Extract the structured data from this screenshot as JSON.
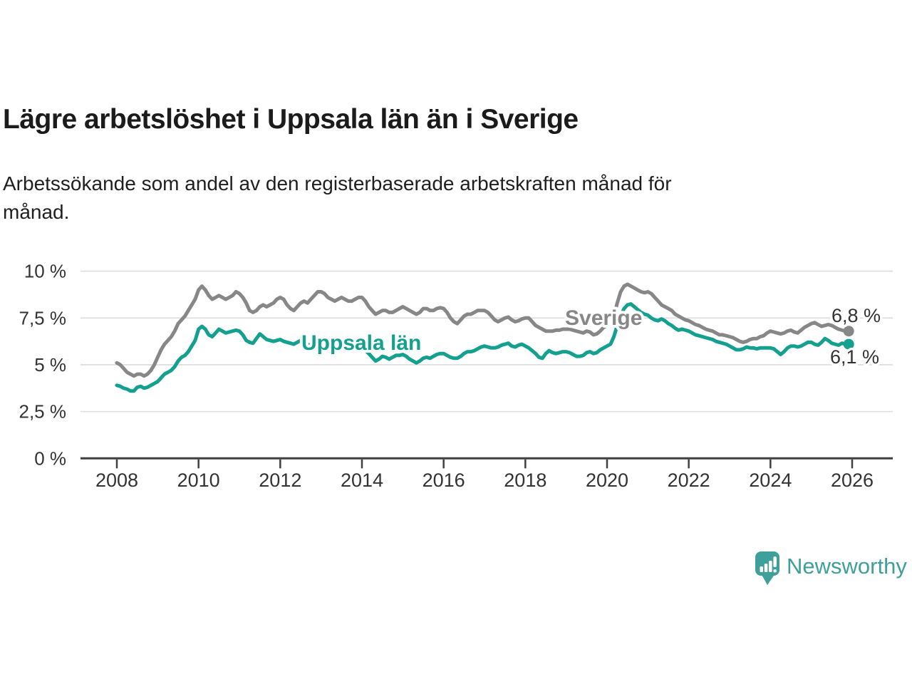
{
  "page": {
    "title": "Lägre arbetslöshet i Uppsala län än i Sverige",
    "subtitle_line1": "Arbetssökande som andel av den registerbaserade arbetskraften månad för",
    "subtitle_line2": "månad."
  },
  "chart_data": {
    "type": "line",
    "unit": "%",
    "frequency": "monthly",
    "x_start_year": 2008,
    "x_end_year": 2025,
    "x_tick_years": [
      2008,
      2010,
      2012,
      2014,
      2016,
      2018,
      2020,
      2022,
      2024,
      2026
    ],
    "x_tick_labels": [
      "2008",
      "2010",
      "2012",
      "2014",
      "2016",
      "2018",
      "2020",
      "2022",
      "2024",
      "2026"
    ],
    "y_ticks": [
      0,
      2.5,
      5,
      7.5,
      10
    ],
    "y_tick_labels": [
      "0 %",
      "2,5 %",
      "5 %",
      "7,5 %",
      "10 %"
    ],
    "ylim": [
      0,
      10
    ],
    "grid": "horizontal",
    "legend_position": "inline-labels",
    "series": [
      {
        "name": "Sverige",
        "color": "#878787",
        "end_label": "6,8 %",
        "end_value": 6.8,
        "values": [
          5.1,
          5.0,
          4.8,
          4.6,
          4.5,
          4.4,
          4.5,
          4.5,
          4.4,
          4.5,
          4.7,
          5.0,
          5.4,
          5.8,
          6.1,
          6.3,
          6.5,
          6.8,
          7.2,
          7.4,
          7.6,
          7.9,
          8.2,
          8.5,
          9.0,
          9.2,
          9.0,
          8.7,
          8.5,
          8.6,
          8.7,
          8.6,
          8.5,
          8.6,
          8.7,
          8.9,
          8.8,
          8.6,
          8.3,
          7.9,
          7.8,
          7.9,
          8.1,
          8.2,
          8.1,
          8.2,
          8.3,
          8.5,
          8.6,
          8.5,
          8.2,
          8.0,
          7.9,
          8.1,
          8.3,
          8.4,
          8.3,
          8.5,
          8.7,
          8.9,
          8.9,
          8.8,
          8.6,
          8.5,
          8.4,
          8.5,
          8.6,
          8.5,
          8.4,
          8.4,
          8.5,
          8.6,
          8.6,
          8.4,
          8.1,
          7.9,
          7.7,
          7.8,
          7.9,
          7.9,
          7.8,
          7.8,
          7.9,
          8.0,
          8.1,
          8.0,
          7.9,
          7.8,
          7.7,
          7.8,
          8.0,
          8.0,
          7.9,
          7.9,
          8.0,
          8.05,
          8.0,
          7.8,
          7.5,
          7.3,
          7.2,
          7.4,
          7.6,
          7.7,
          7.7,
          7.8,
          7.9,
          7.9,
          7.9,
          7.8,
          7.6,
          7.4,
          7.3,
          7.4,
          7.5,
          7.55,
          7.4,
          7.3,
          7.35,
          7.45,
          7.5,
          7.5,
          7.3,
          7.1,
          7.0,
          6.9,
          6.8,
          6.8,
          6.8,
          6.85,
          6.85,
          6.9,
          6.9,
          6.9,
          6.85,
          6.8,
          6.75,
          6.7,
          6.8,
          6.75,
          6.6,
          6.65,
          6.8,
          7.0,
          7.1,
          7.2,
          7.6,
          8.3,
          8.9,
          9.2,
          9.3,
          9.2,
          9.1,
          9.0,
          8.9,
          8.85,
          8.9,
          8.8,
          8.6,
          8.4,
          8.2,
          8.1,
          8.0,
          7.9,
          7.7,
          7.6,
          7.5,
          7.4,
          7.35,
          7.25,
          7.15,
          7.1,
          7.0,
          6.9,
          6.85,
          6.8,
          6.7,
          6.6,
          6.6,
          6.55,
          6.5,
          6.45,
          6.35,
          6.25,
          6.2,
          6.25,
          6.35,
          6.4,
          6.4,
          6.5,
          6.55,
          6.7,
          6.8,
          6.75,
          6.7,
          6.65,
          6.7,
          6.8,
          6.85,
          6.75,
          6.7,
          6.85,
          7.0,
          7.1,
          7.2,
          7.25,
          7.15,
          7.05,
          7.1,
          7.15,
          7.1,
          7.0,
          6.9,
          6.85,
          6.8,
          6.8
        ]
      },
      {
        "name": "Uppsala län",
        "color": "#14a08f",
        "end_label": "6,1 %",
        "end_value": 6.1,
        "values": [
          3.9,
          3.85,
          3.75,
          3.7,
          3.6,
          3.6,
          3.8,
          3.85,
          3.75,
          3.8,
          3.9,
          4.0,
          4.1,
          4.3,
          4.5,
          4.6,
          4.7,
          4.9,
          5.2,
          5.4,
          5.5,
          5.7,
          6.0,
          6.3,
          6.9,
          7.05,
          6.9,
          6.6,
          6.5,
          6.7,
          6.9,
          6.8,
          6.7,
          6.75,
          6.8,
          6.85,
          6.8,
          6.6,
          6.3,
          6.2,
          6.15,
          6.4,
          6.65,
          6.5,
          6.35,
          6.3,
          6.25,
          6.3,
          6.35,
          6.25,
          6.2,
          6.15,
          6.1,
          6.2,
          6.3,
          6.25,
          6.05,
          6.1,
          6.15,
          6.15,
          6.1,
          6.05,
          6.0,
          5.95,
          5.9,
          6.0,
          6.05,
          6.0,
          5.9,
          5.85,
          5.9,
          5.95,
          5.9,
          5.75,
          5.6,
          5.4,
          5.2,
          5.3,
          5.45,
          5.4,
          5.3,
          5.4,
          5.5,
          5.5,
          5.55,
          5.45,
          5.3,
          5.2,
          5.1,
          5.2,
          5.35,
          5.4,
          5.35,
          5.45,
          5.55,
          5.6,
          5.6,
          5.5,
          5.4,
          5.35,
          5.35,
          5.45,
          5.6,
          5.7,
          5.7,
          5.75,
          5.85,
          5.95,
          6.0,
          5.95,
          5.9,
          5.9,
          5.95,
          6.05,
          6.1,
          6.15,
          6.0,
          5.95,
          6.05,
          6.1,
          6.0,
          5.9,
          5.75,
          5.6,
          5.4,
          5.35,
          5.6,
          5.75,
          5.65,
          5.6,
          5.65,
          5.7,
          5.7,
          5.65,
          5.55,
          5.45,
          5.45,
          5.5,
          5.65,
          5.7,
          5.6,
          5.65,
          5.8,
          5.9,
          6.0,
          6.1,
          6.5,
          7.1,
          7.6,
          8.0,
          8.2,
          8.25,
          8.1,
          7.95,
          7.8,
          7.7,
          7.65,
          7.5,
          7.4,
          7.35,
          7.45,
          7.35,
          7.2,
          7.1,
          6.95,
          6.85,
          6.9,
          6.85,
          6.8,
          6.7,
          6.6,
          6.55,
          6.5,
          6.45,
          6.4,
          6.35,
          6.25,
          6.2,
          6.15,
          6.1,
          6.0,
          5.9,
          5.8,
          5.8,
          5.85,
          5.95,
          5.9,
          5.9,
          5.85,
          5.9,
          5.9,
          5.9,
          5.9,
          5.85,
          5.7,
          5.55,
          5.7,
          5.9,
          6.0,
          6.0,
          5.95,
          6.0,
          6.1,
          6.2,
          6.2,
          6.1,
          6.05,
          6.2,
          6.4,
          6.3,
          6.15,
          6.1,
          6.05,
          6.15,
          6.1,
          6.1
        ]
      }
    ]
  },
  "branding": {
    "wordmark": "Newsworthy",
    "logo_icon": "bar-chart-exclamation-speech-bubble-icon",
    "logo_color": "#3f9f9a"
  }
}
